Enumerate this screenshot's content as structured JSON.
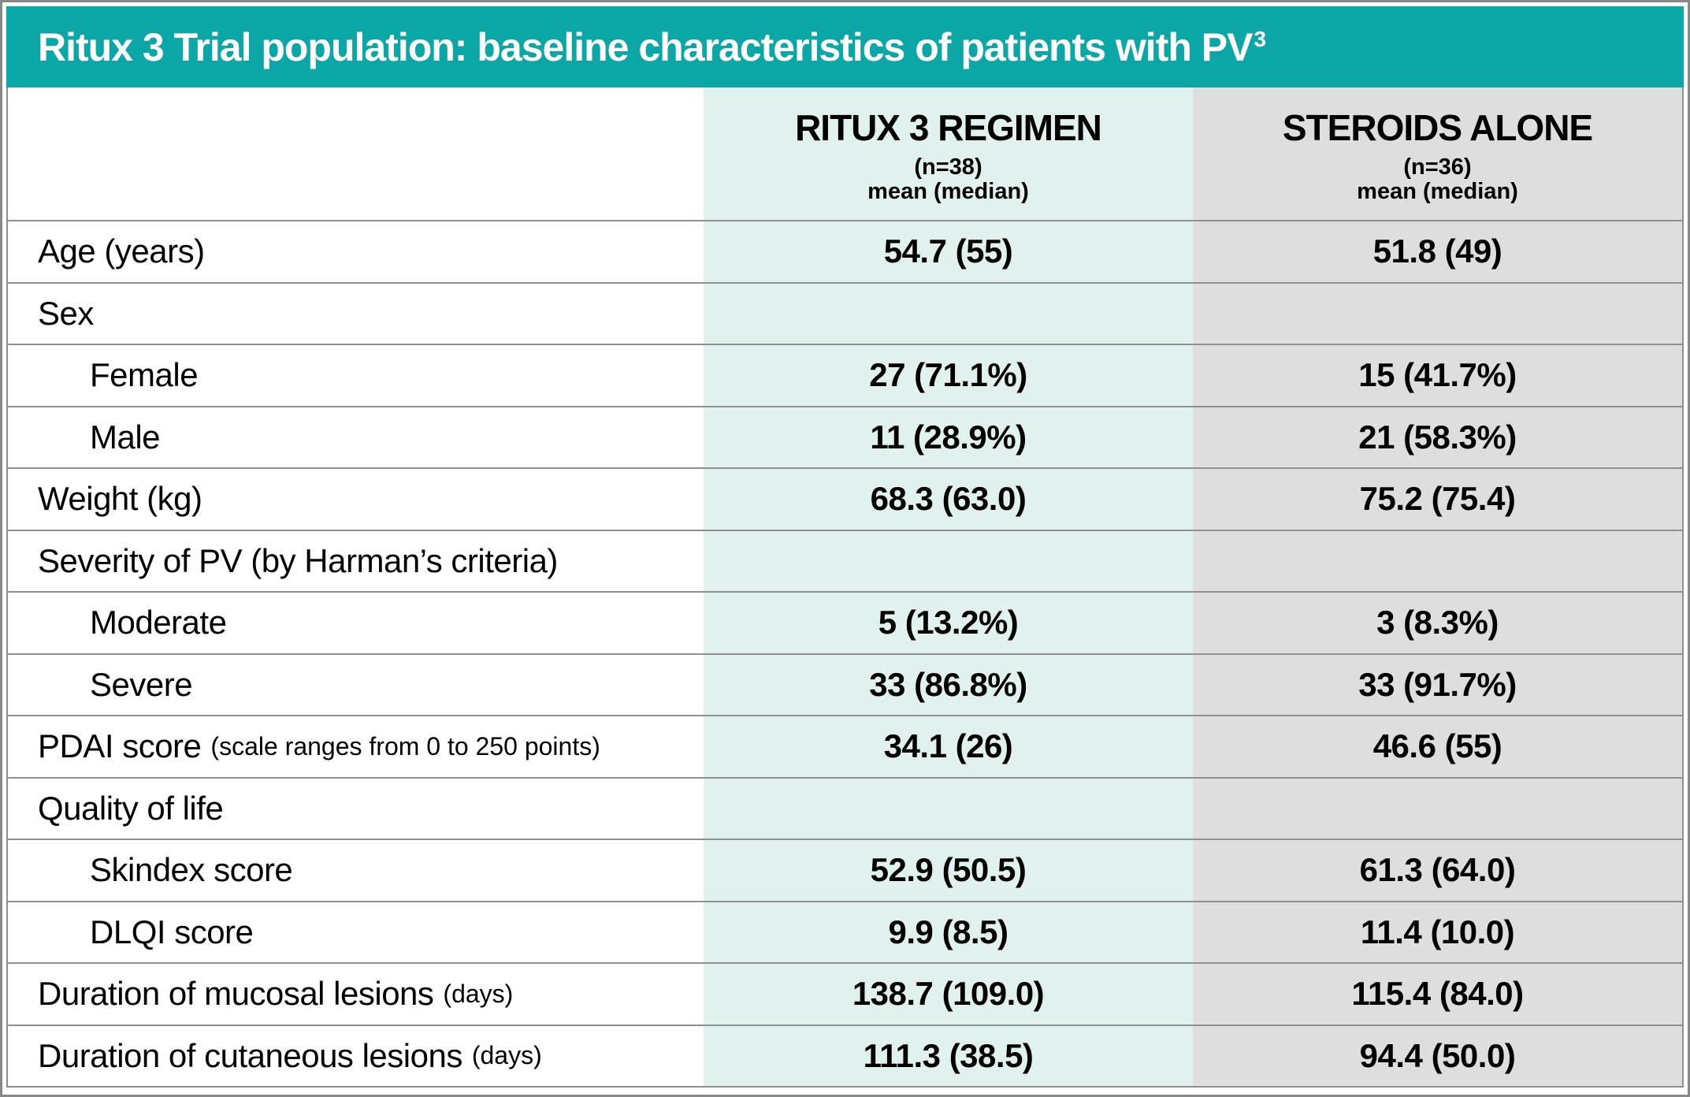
{
  "title": {
    "text": "Ritux 3 Trial population: baseline characteristics of patients with PV",
    "sup": "3"
  },
  "columns": {
    "ritux": {
      "name": "RITUX 3 REGIMEN",
      "n": "(n=38)",
      "stat": "mean (median)"
    },
    "steroids": {
      "name": "STEROIDS ALONE",
      "n": "(n=36)",
      "stat": "mean (median)"
    }
  },
  "colors": {
    "header_teal": "#0ba7a6",
    "ritux_col": "#e1f1f0",
    "steroids_col": "#dedede",
    "border": "#8f8f8f"
  },
  "table": {
    "rows": [
      {
        "label": "Age (years)",
        "suffix": "",
        "ritux": "54.7 (55)",
        "steroids": "51.8 (49)"
      },
      {
        "label": "Sex",
        "suffix": "",
        "ritux": "",
        "steroids": ""
      },
      {
        "label": "Female",
        "suffix": "",
        "ritux": "27 (71.1%)",
        "steroids": "15 (41.7%)"
      },
      {
        "label": "Male",
        "suffix": "",
        "ritux": "11 (28.9%)",
        "steroids": "21 (58.3%)"
      },
      {
        "label": "Weight (kg)",
        "suffix": "",
        "ritux": "68.3 (63.0)",
        "steroids": "75.2 (75.4)"
      },
      {
        "label": "Severity of PV (by Harman’s criteria)",
        "suffix": "",
        "ritux": "",
        "steroids": ""
      },
      {
        "label": "Moderate",
        "suffix": "",
        "ritux": "5 (13.2%)",
        "steroids": "3 (8.3%)"
      },
      {
        "label": "Severe",
        "suffix": "",
        "ritux": "33 (86.8%)",
        "steroids": "33 (91.7%)"
      },
      {
        "label": "PDAI score",
        "suffix": "(scale ranges from 0 to 250 points)",
        "ritux": "34.1 (26)",
        "steroids": "46.6 (55)"
      },
      {
        "label": "Quality of life",
        "suffix": "",
        "ritux": "",
        "steroids": ""
      },
      {
        "label": "Skindex score",
        "suffix": "",
        "ritux": "52.9 (50.5)",
        "steroids": "61.3 (64.0)"
      },
      {
        "label": "DLQI score",
        "suffix": "",
        "ritux": "9.9 (8.5)",
        "steroids": "11.4 (10.0)"
      },
      {
        "label": "Duration of mucosal lesions",
        "suffix": "(days)",
        "ritux": "138.7 (109.0)",
        "steroids": "115.4 (84.0)"
      },
      {
        "label": "Duration of cutaneous lesions",
        "suffix": "(days)",
        "ritux": "111.3 (38.5)",
        "steroids": "94.4 (50.0)"
      }
    ]
  }
}
